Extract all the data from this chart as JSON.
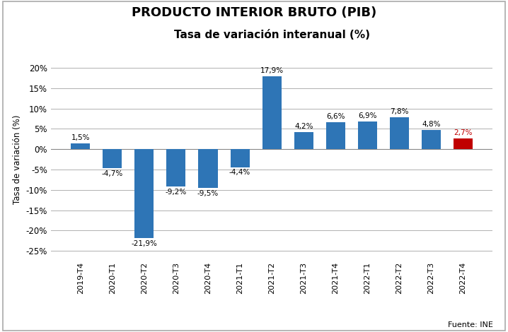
{
  "title_line1": "PRODUCTO INTERIOR BRUTO (PIB)",
  "title_line2": "Tasa de variación interanual (%)",
  "ylabel": "Tasa de variación (%)",
  "source": "Fuente: INE",
  "categories": [
    "2019-T4",
    "2020-T1",
    "2020-T2",
    "2020-T3",
    "2020-T4",
    "2021-T1",
    "2021-T2",
    "2021-T3",
    "2021-T4",
    "2022-T1",
    "2022-T2",
    "2022-T3",
    "2022-T4"
  ],
  "values": [
    1.5,
    -4.7,
    -21.9,
    -9.2,
    -9.5,
    -4.4,
    17.9,
    4.2,
    6.6,
    6.9,
    7.8,
    4.8,
    2.7
  ],
  "bar_colors": [
    "#2E75B6",
    "#2E75B6",
    "#2E75B6",
    "#2E75B6",
    "#2E75B6",
    "#2E75B6",
    "#2E75B6",
    "#2E75B6",
    "#2E75B6",
    "#2E75B6",
    "#2E75B6",
    "#2E75B6",
    "#C00000"
  ],
  "label_colors": [
    "#000000",
    "#000000",
    "#000000",
    "#000000",
    "#000000",
    "#000000",
    "#000000",
    "#000000",
    "#000000",
    "#000000",
    "#000000",
    "#000000",
    "#C00000"
  ],
  "ylim": [
    -27,
    22
  ],
  "yticks": [
    -25,
    -20,
    -15,
    -10,
    -5,
    0,
    5,
    10,
    15,
    20
  ],
  "ytick_labels": [
    "-25%",
    "-20%",
    "-15%",
    "-10%",
    "-5%",
    "0%",
    "5%",
    "10%",
    "15%",
    "20%"
  ],
  "background_color": "#FFFFFF",
  "grid_color": "#B0B0B0",
  "title_fontsize": 13,
  "subtitle_fontsize": 11,
  "label_fontsize": 7.5,
  "ylabel_fontsize": 8.5,
  "source_fontsize": 8,
  "tick_fontsize": 8.5,
  "xtick_fontsize": 8
}
